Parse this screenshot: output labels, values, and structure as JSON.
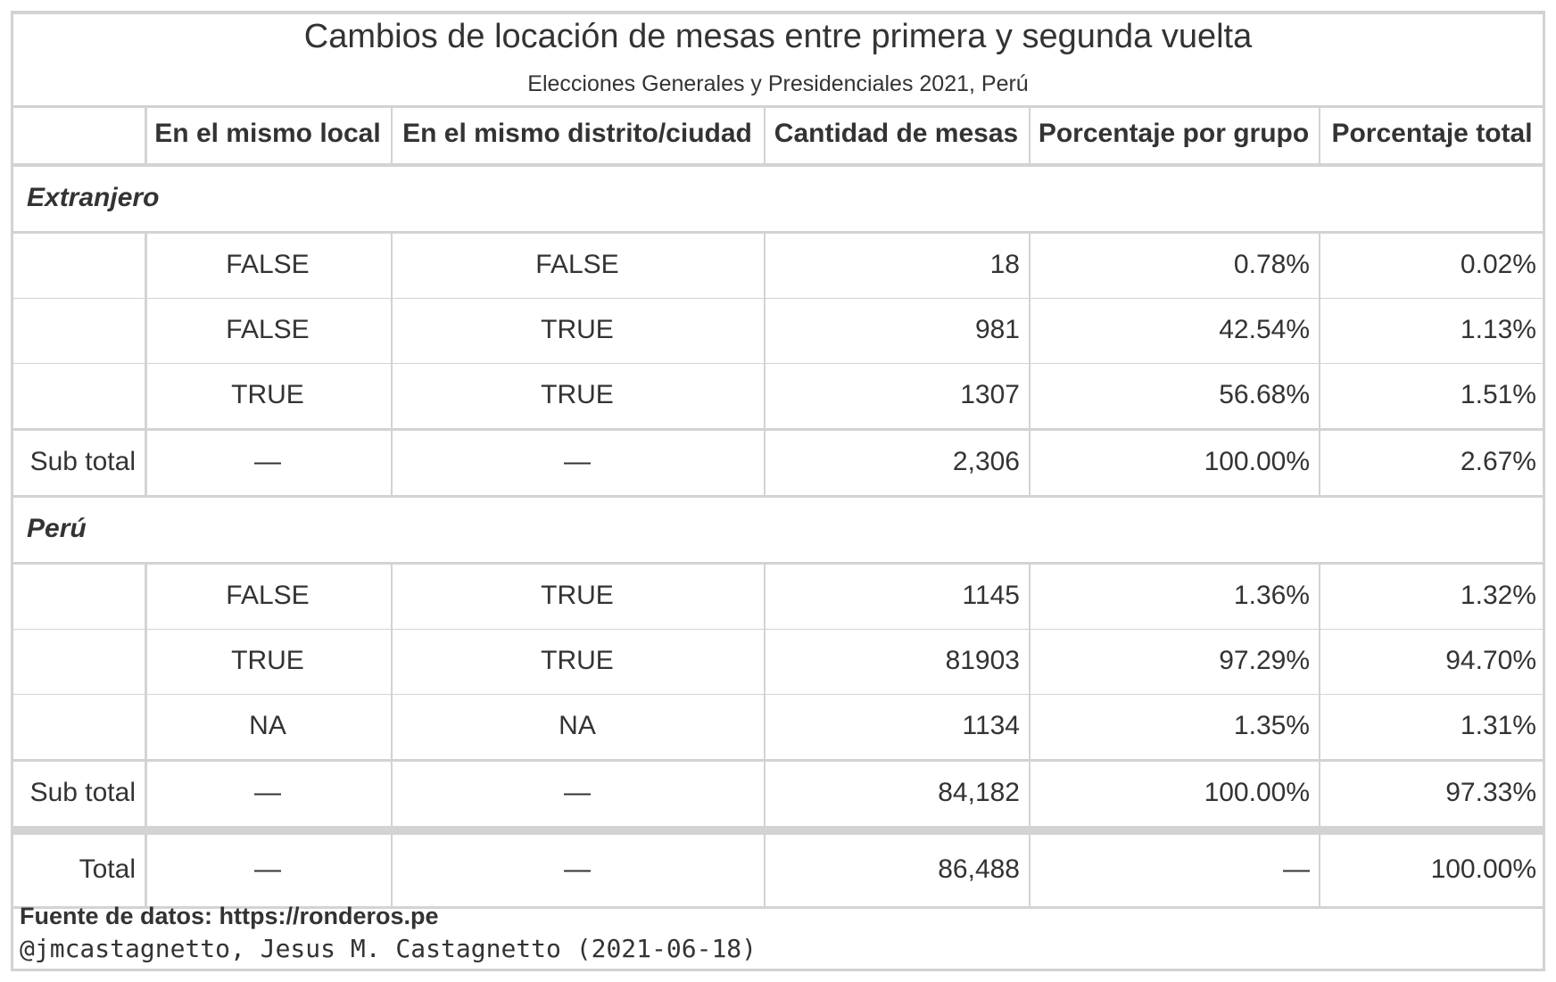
{
  "chart_data": {
    "type": "table",
    "title": "Cambios de locación de mesas entre primera y segunda vuelta",
    "subtitle": "Elecciones Generales y Presidenciales 2021, Perú",
    "columns": [
      "",
      "En el mismo local",
      "En el mismo distrito/ciudad",
      "Cantidad de mesas",
      "Porcentaje por grupo",
      "Porcentaje total"
    ],
    "groups": [
      {
        "name": "Extranjero",
        "rows": [
          [
            "",
            "FALSE",
            "FALSE",
            "18",
            "0.78%",
            "0.02%"
          ],
          [
            "",
            "FALSE",
            "TRUE",
            "981",
            "42.54%",
            "1.13%"
          ],
          [
            "",
            "TRUE",
            "TRUE",
            "1307",
            "56.68%",
            "1.51%"
          ]
        ],
        "subtotal": [
          "Sub total",
          "—",
          "—",
          "2,306",
          "100.00%",
          "2.67%"
        ]
      },
      {
        "name": "Perú",
        "rows": [
          [
            "",
            "FALSE",
            "TRUE",
            "1145",
            "1.36%",
            "1.32%"
          ],
          [
            "",
            "TRUE",
            "TRUE",
            "81903",
            "97.29%",
            "94.70%"
          ],
          [
            "",
            "NA",
            "NA",
            "1134",
            "1.35%",
            "1.31%"
          ]
        ],
        "subtotal": [
          "Sub total",
          "—",
          "—",
          "84,182",
          "100.00%",
          "97.33%"
        ]
      }
    ],
    "total": [
      "Total",
      "—",
      "—",
      "86,488",
      "—",
      "100.00%"
    ]
  },
  "source_note": "Fuente de datos: https://ronderos.pe",
  "credit": "@jmcastagnetto, Jesus M. Castagnetto (2021-06-18)"
}
